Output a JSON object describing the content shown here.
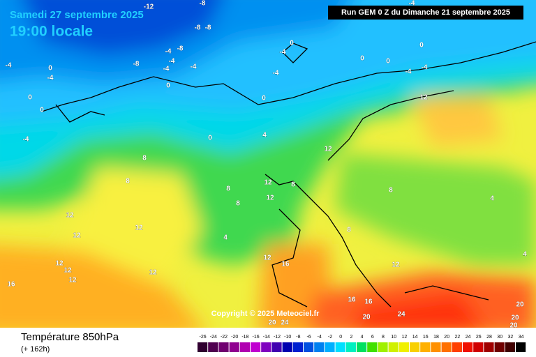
{
  "header": {
    "title": "Samedi 27 septembre 2025",
    "subtitle": "19:00 locale",
    "run": "Run GEM 0 Z du Dimanche 21 septembre 2025"
  },
  "copyright": "Copyright © 2025 Meteociel.fr",
  "footer": {
    "title": "Température 850hPa",
    "lead": "(+ 162h)"
  },
  "legend": {
    "values": [
      -26,
      -24,
      -22,
      -20,
      -18,
      -16,
      -14,
      -12,
      -10,
      -8,
      -6,
      -4,
      -2,
      0,
      2,
      4,
      6,
      8,
      10,
      12,
      14,
      16,
      18,
      20,
      22,
      24,
      26,
      28,
      30,
      32,
      34
    ],
    "colors": [
      "#300030",
      "#500050",
      "#700070",
      "#900090",
      "#b000b0",
      "#c000d0",
      "#8000c0",
      "#4000b0",
      "#0000b0",
      "#0020d0",
      "#0050e0",
      "#0080f0",
      "#00b0ff",
      "#00e0ff",
      "#00f0c0",
      "#00e060",
      "#40e000",
      "#a0f000",
      "#d0f000",
      "#f0f000",
      "#f8d000",
      "#ffb000",
      "#ff9000",
      "#ff7000",
      "#ff4000",
      "#f01000",
      "#d00000",
      "#a00000",
      "#700000",
      "#400000",
      "#000000"
    ]
  },
  "contour_labels": [
    -12,
    -8,
    -8,
    -8,
    -8,
    -4,
    -4,
    -4,
    -8,
    -4,
    0,
    0,
    -4,
    -4,
    0,
    0,
    0,
    0,
    -4,
    -4,
    -4,
    12,
    -4,
    0,
    -4,
    0,
    0,
    -4,
    0,
    4,
    8,
    8,
    12,
    8,
    8,
    12,
    12,
    8,
    4,
    12,
    12,
    12,
    12,
    12,
    12,
    12,
    16,
    12,
    16,
    8,
    8,
    4,
    4,
    12,
    16,
    16,
    20,
    24,
    20,
    24,
    20,
    20,
    20
  ]
}
